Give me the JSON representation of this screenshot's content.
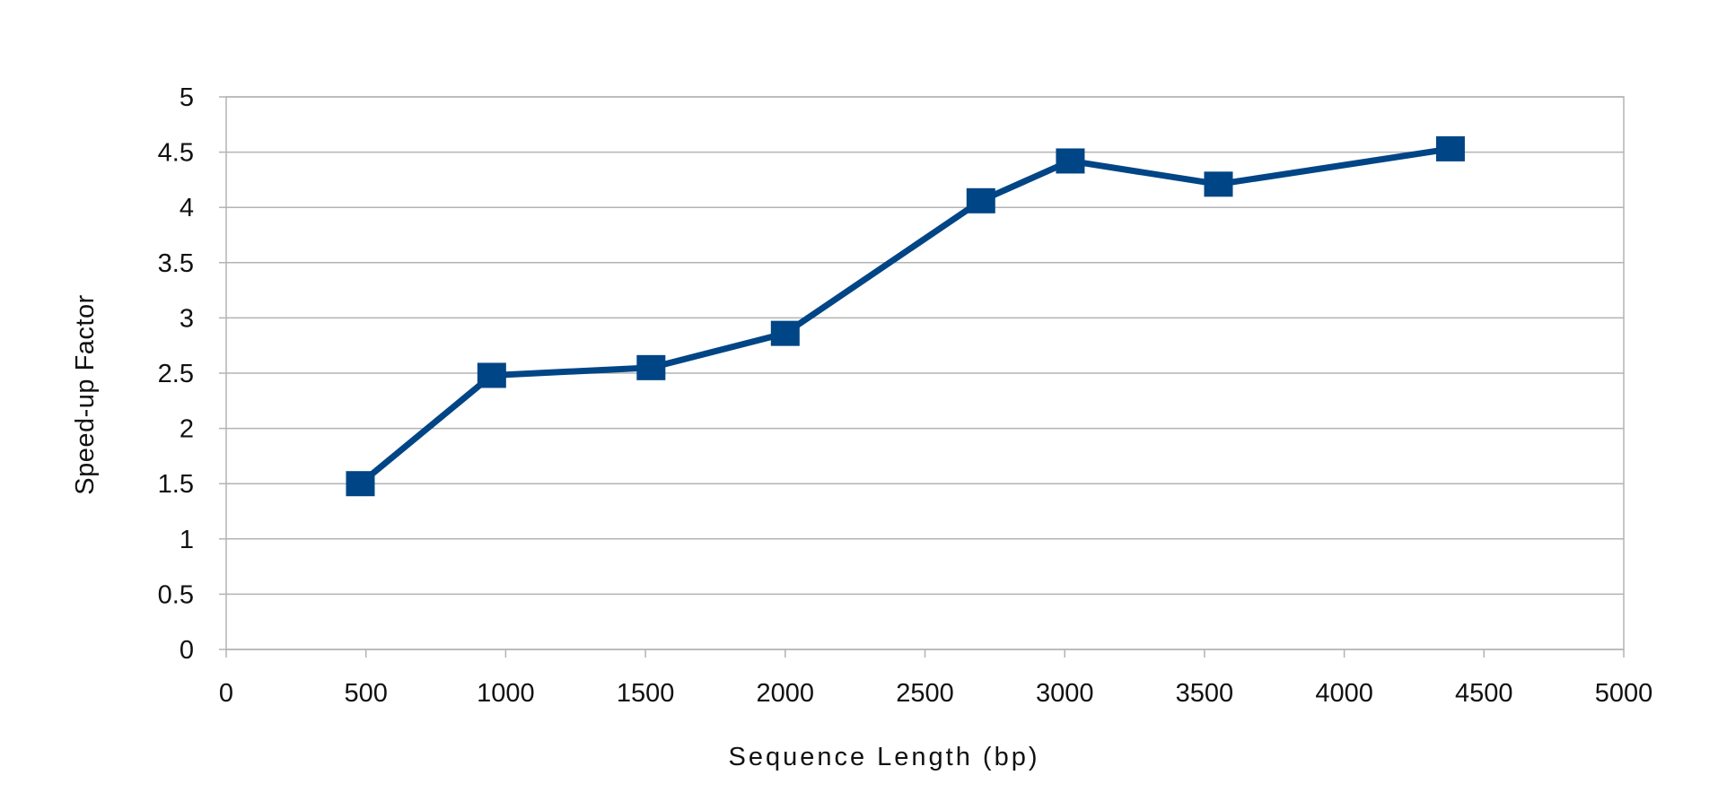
{
  "chart_data": {
    "type": "line",
    "title": "",
    "xlabel": "Sequence  Length (bp)",
    "ylabel": "Speed-up  Factor",
    "xlim": [
      0,
      5000
    ],
    "ylim": [
      0,
      5
    ],
    "x_ticks": [
      "0",
      "500",
      "1000",
      "1500",
      "2000",
      "2500",
      "3000",
      "3500",
      "4000",
      "4500",
      "5000"
    ],
    "y_ticks": [
      "0",
      "0.5",
      "1",
      "1.5",
      "2",
      "2.5",
      "3",
      "3.5",
      "4",
      "4.5",
      "5"
    ],
    "grid": "horizontal",
    "legend": "none",
    "series": [
      {
        "color": "#004586",
        "marker": "square",
        "x": [
          480,
          950,
          1520,
          2000,
          2700,
          3020,
          3550,
          4380
        ],
        "y": [
          1.5,
          2.48,
          2.55,
          2.86,
          4.06,
          4.42,
          4.21,
          4.53
        ]
      }
    ]
  }
}
